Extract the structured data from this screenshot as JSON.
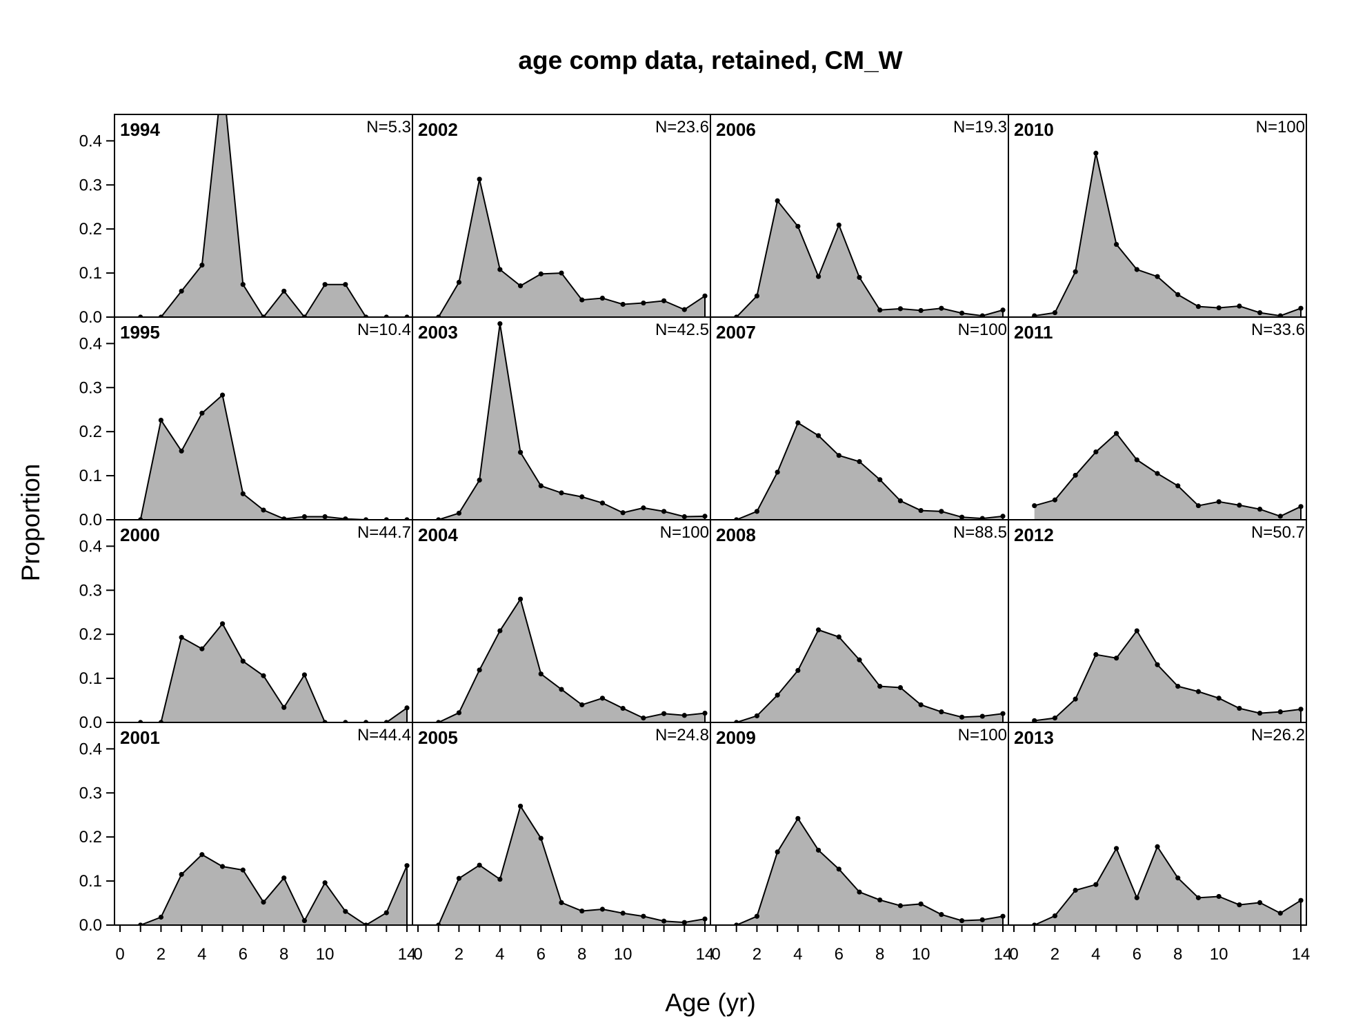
{
  "chart_data": {
    "type": "area",
    "title": "age comp data, retained, CM_W",
    "xlabel": "Age (yr)",
    "ylabel": "Proportion",
    "xlim": [
      0,
      14
    ],
    "ylim": [
      0,
      0.46
    ],
    "x_ticks": [
      0,
      2,
      4,
      6,
      8,
      10,
      14
    ],
    "x_tick_labels": [
      "0",
      "2",
      "4",
      "6",
      "8",
      "10",
      "14"
    ],
    "y_ticks": [
      0.0,
      0.1,
      0.2,
      0.3,
      0.4
    ],
    "y_tick_labels": [
      "0.0",
      "0.1",
      "0.2",
      "0.3",
      "0.4"
    ],
    "grid": false,
    "layout": {
      "rows": 4,
      "cols": 4,
      "order": "column-major"
    },
    "ages": [
      1,
      2,
      3,
      4,
      5,
      6,
      7,
      8,
      9,
      10,
      11,
      12,
      13,
      14
    ],
    "colors": {
      "fill": "#b3b3b3",
      "line": "#000000",
      "point": "#000000"
    },
    "panels": [
      {
        "year": "1994",
        "n_label": "N=5.3",
        "values": [
          0,
          0,
          0.059,
          0.118,
          0.55,
          0.074,
          0,
          0.059,
          0,
          0.074,
          0.074,
          0,
          0,
          0
        ]
      },
      {
        "year": "1995",
        "n_label": "N=10.4",
        "values": [
          0,
          0.226,
          0.156,
          0.242,
          0.283,
          0.059,
          0.022,
          0.002,
          0.007,
          0.007,
          0.002,
          0,
          0,
          0
        ]
      },
      {
        "year": "2000",
        "n_label": "N=44.7",
        "values": [
          0,
          0,
          0.193,
          0.167,
          0.224,
          0.139,
          0.106,
          0.034,
          0.108,
          0,
          0,
          0,
          0,
          0.033
        ]
      },
      {
        "year": "2001",
        "n_label": "N=44.4",
        "values": [
          0,
          0.018,
          0.115,
          0.16,
          0.133,
          0.125,
          0.052,
          0.107,
          0.01,
          0.096,
          0.031,
          0,
          0.028,
          0.135
        ]
      },
      {
        "year": "2002",
        "n_label": "N=23.6",
        "values": [
          0,
          0.079,
          0.313,
          0.108,
          0.071,
          0.098,
          0.1,
          0.039,
          0.043,
          0.029,
          0.032,
          0.037,
          0.017,
          0.048
        ]
      },
      {
        "year": "2003",
        "n_label": "N=42.5",
        "values": [
          0,
          0.015,
          0.09,
          0.445,
          0.153,
          0.077,
          0.061,
          0.052,
          0.038,
          0.016,
          0.027,
          0.019,
          0.007,
          0.008
        ]
      },
      {
        "year": "2004",
        "n_label": "N=100",
        "values": [
          0,
          0.022,
          0.119,
          0.208,
          0.28,
          0.11,
          0.075,
          0.04,
          0.055,
          0.032,
          0.01,
          0.02,
          0.016,
          0.021
        ]
      },
      {
        "year": "2005",
        "n_label": "N=24.8",
        "values": [
          0,
          0.106,
          0.136,
          0.104,
          0.27,
          0.197,
          0.051,
          0.032,
          0.036,
          0.027,
          0.02,
          0.009,
          0.006,
          0.014
        ]
      },
      {
        "year": "2006",
        "n_label": "N=19.3",
        "values": [
          0,
          0.048,
          0.264,
          0.206,
          0.092,
          0.209,
          0.09,
          0.016,
          0.019,
          0.015,
          0.02,
          0.009,
          0.003,
          0.016
        ]
      },
      {
        "year": "2007",
        "n_label": "N=100",
        "values": [
          0,
          0.019,
          0.108,
          0.22,
          0.191,
          0.146,
          0.132,
          0.091,
          0.043,
          0.021,
          0.019,
          0.006,
          0.003,
          0.008
        ]
      },
      {
        "year": "2008",
        "n_label": "N=88.5",
        "values": [
          0,
          0.015,
          0.062,
          0.118,
          0.21,
          0.194,
          0.142,
          0.082,
          0.079,
          0.04,
          0.024,
          0.012,
          0.014,
          0.02
        ]
      },
      {
        "year": "2009",
        "n_label": "N=100",
        "values": [
          0,
          0.02,
          0.166,
          0.242,
          0.17,
          0.127,
          0.075,
          0.057,
          0.044,
          0.048,
          0.024,
          0.01,
          0.012,
          0.02
        ]
      },
      {
        "year": "2010",
        "n_label": "N=100",
        "values": [
          0.003,
          0.01,
          0.103,
          0.372,
          0.165,
          0.108,
          0.092,
          0.051,
          0.024,
          0.021,
          0.025,
          0.01,
          0.003,
          0.02
        ]
      },
      {
        "year": "2011",
        "n_label": "N=33.6",
        "values": [
          0.032,
          0.045,
          0.101,
          0.154,
          0.196,
          0.136,
          0.105,
          0.077,
          0.032,
          0.041,
          0.033,
          0.024,
          0.008,
          0.03
        ]
      },
      {
        "year": "2012",
        "n_label": "N=50.7",
        "values": [
          0.004,
          0.01,
          0.053,
          0.154,
          0.146,
          0.208,
          0.131,
          0.082,
          0.07,
          0.055,
          0.032,
          0.021,
          0.024,
          0.03
        ]
      },
      {
        "year": "2013",
        "n_label": "N=26.2",
        "values": [
          0,
          0.021,
          0.079,
          0.092,
          0.174,
          0.062,
          0.178,
          0.107,
          0.062,
          0.065,
          0.046,
          0.051,
          0.027,
          0.056
        ]
      }
    ]
  }
}
